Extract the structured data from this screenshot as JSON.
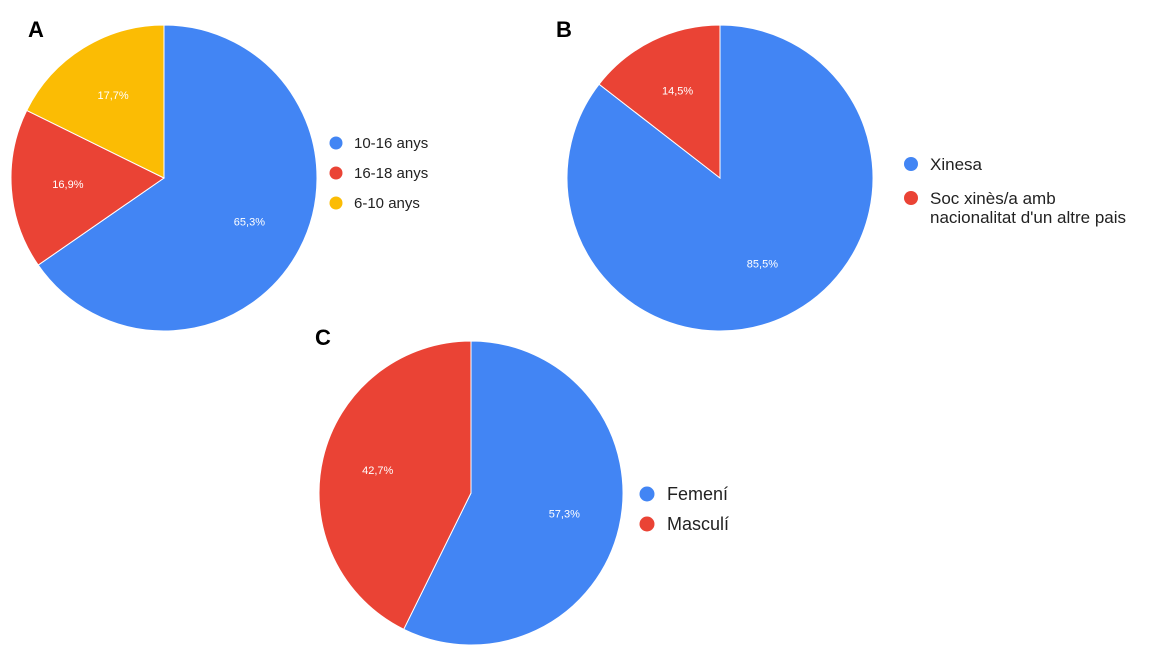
{
  "chart_data": [
    {
      "type": "pie",
      "panel_label": "A",
      "categories": [
        "10-16 anys",
        "16-18 anys",
        "6-10 anys"
      ],
      "values": [
        65.3,
        16.9,
        17.7
      ],
      "data_labels": [
        "65,3%",
        "16,9%",
        "17,7%"
      ],
      "colors": [
        "#4285f4",
        "#ea4335",
        "#fbbc04"
      ],
      "legend_position": "right"
    },
    {
      "type": "pie",
      "panel_label": "B",
      "categories": [
        "Xinesa",
        "Soc xinès/a amb nacionalitat d'un altre pais"
      ],
      "legend_lines": [
        [
          "Xinesa"
        ],
        [
          "Soc xinès/a amb",
          "nacionalitat d'un altre pais"
        ]
      ],
      "values": [
        85.5,
        14.5
      ],
      "data_labels": [
        "85,5%",
        "14,5%"
      ],
      "colors": [
        "#4285f4",
        "#ea4335"
      ],
      "legend_position": "right"
    },
    {
      "type": "pie",
      "panel_label": "C",
      "categories": [
        "Femení",
        "Masculí"
      ],
      "values": [
        57.3,
        42.7
      ],
      "data_labels": [
        "57,3%",
        "42,7%"
      ],
      "colors": [
        "#4285f4",
        "#ea4335"
      ],
      "legend_position": "right"
    }
  ]
}
